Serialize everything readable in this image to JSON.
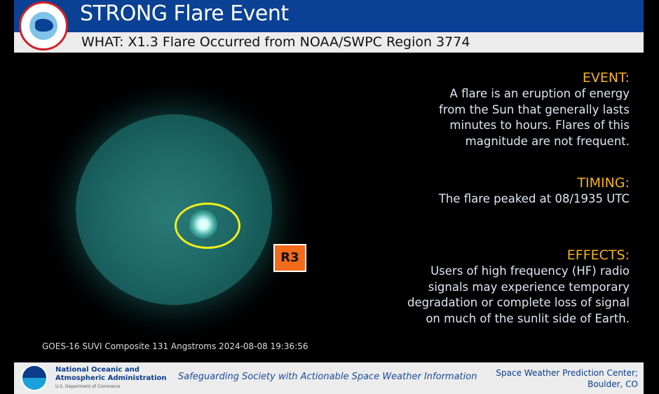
{
  "header": {
    "title": "STRONG Flare Event",
    "subtitle": "WHAT: X1.3 Flare Occurred from NOAA/SWPC Region 3774",
    "logo": "NATIONAL WEATHER SERVICE"
  },
  "image": {
    "caption": "GOES-16 SUVI Composite 131 Angstroms 2024-08-08 19:36:56",
    "badge": "R3",
    "badge_color": "#f26a1b",
    "highlight_color": "#f2ef1a"
  },
  "event": {
    "heading": "EVENT:",
    "lines": [
      "A flare is an eruption of energy",
      "from the Sun that generally lasts",
      "minutes to hours. Flares of this",
      "magnitude are not frequent."
    ]
  },
  "timing": {
    "heading": "TIMING:",
    "lines": [
      "The flare peaked at 08/1935 UTC"
    ]
  },
  "effects": {
    "heading": "EFFECTS:",
    "lines": [
      "Users of high frequency (HF) radio",
      "signals may experience temporary",
      "degradation or complete loss of signal",
      "on much of the sunlit side of Earth."
    ]
  },
  "footer": {
    "org1": "National Oceanic and",
    "org2": "Atmospheric Administration",
    "dept": "U.S. Department of Commerce",
    "tagline": "Safeguarding Society with Actionable Space Weather Information",
    "center1": "Space Weather Prediction Center;",
    "center2": "Boulder, CO",
    "noaa_logo": "NOAA"
  }
}
